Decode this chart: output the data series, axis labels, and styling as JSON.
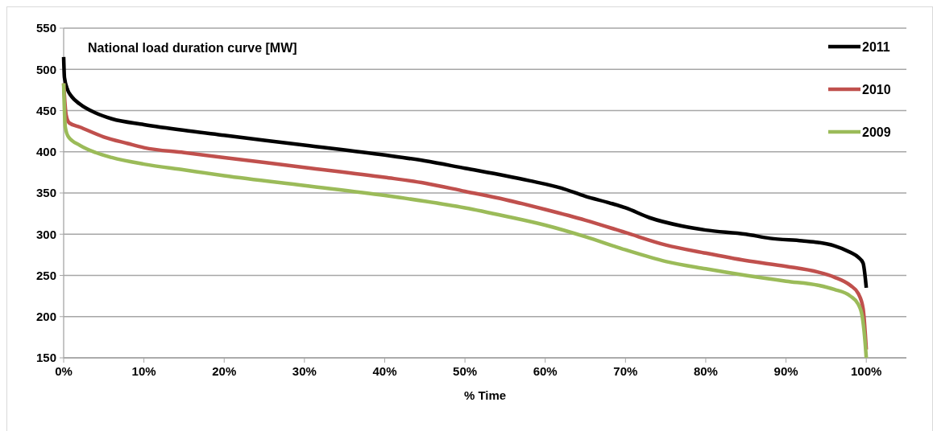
{
  "chart_data": {
    "type": "line",
    "title": "National load duration curve [MW]",
    "xlabel": "% Time",
    "xlim": [
      0,
      105
    ],
    "xticks": [
      {
        "value": 0,
        "label": "0%"
      },
      {
        "value": 10,
        "label": "10%"
      },
      {
        "value": 20,
        "label": "20%"
      },
      {
        "value": 30,
        "label": "30%"
      },
      {
        "value": 40,
        "label": "40%"
      },
      {
        "value": 50,
        "label": "50%"
      },
      {
        "value": 60,
        "label": "60%"
      },
      {
        "value": 70,
        "label": "70%"
      },
      {
        "value": 80,
        "label": "80%"
      },
      {
        "value": 90,
        "label": "90%"
      },
      {
        "value": 100,
        "label": "100%"
      }
    ],
    "ylim": [
      150,
      550
    ],
    "yticks": [
      150,
      200,
      250,
      300,
      350,
      400,
      450,
      500,
      550
    ],
    "grid": "y",
    "legend": "top right",
    "marker": "none",
    "line_style": "solid",
    "series": [
      {
        "name": "2011",
        "color": "#000000",
        "x": [
          0,
          0.1,
          0.5,
          1,
          2,
          4,
          6,
          10,
          15,
          20,
          30,
          40,
          45,
          50,
          55,
          58,
          62,
          65,
          68,
          70,
          73,
          77,
          80,
          85,
          88,
          92,
          94,
          96,
          98,
          99,
          99.6,
          100
        ],
        "values": [
          515,
          490,
          475,
          467,
          458,
          447,
          440,
          433,
          426,
          420,
          408,
          396,
          389,
          380,
          371,
          365,
          356,
          346,
          338,
          332,
          320,
          310,
          305,
          300,
          295,
          292,
          290,
          286,
          278,
          272,
          265,
          235
        ]
      },
      {
        "name": "2010",
        "color": "#c0504d",
        "x": [
          0,
          0.3,
          0.7,
          2,
          5,
          8,
          10,
          15,
          20,
          30,
          40,
          45,
          50,
          55,
          60,
          65,
          70,
          75,
          80,
          85,
          90,
          94,
          96,
          98,
          99,
          99.6,
          100
        ],
        "values": [
          483,
          445,
          435,
          430,
          418,
          410,
          405,
          399,
          393,
          381,
          369,
          362,
          352,
          342,
          330,
          317,
          302,
          287,
          277,
          268,
          261,
          254,
          248,
          238,
          228,
          210,
          160
        ]
      },
      {
        "name": "2009",
        "color": "#9bbb59",
        "x": [
          0,
          0.2,
          0.6,
          2,
          4,
          6,
          10,
          15,
          20,
          30,
          40,
          45,
          50,
          55,
          60,
          65,
          70,
          75,
          80,
          85,
          90,
          94,
          96,
          98,
          99,
          99.5,
          99.8,
          100
        ],
        "values": [
          483,
          430,
          418,
          408,
          399,
          393,
          385,
          378,
          371,
          359,
          347,
          340,
          332,
          322,
          311,
          297,
          281,
          267,
          258,
          250,
          243,
          238,
          233,
          225,
          215,
          200,
          175,
          150
        ]
      }
    ]
  }
}
